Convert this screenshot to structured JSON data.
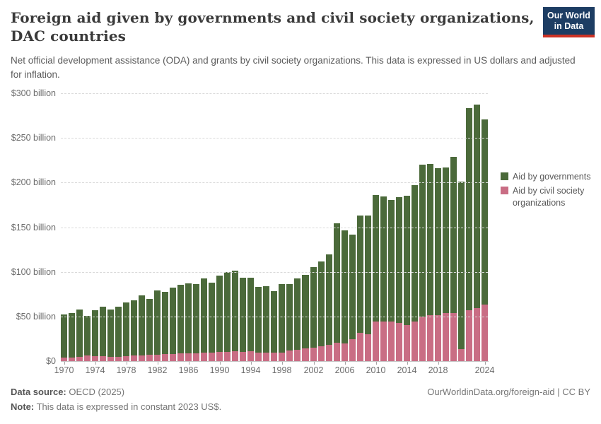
{
  "header": {
    "title": "Foreign aid given by governments and civil society organizations, DAC countries",
    "subtitle": "Net official development assistance (ODA) and grants by civil society organizations. This data is expressed in US dollars and adjusted for inflation.",
    "logo": {
      "line1": "Our World",
      "line2": "in Data"
    }
  },
  "colors": {
    "governments": "#4b6a3a",
    "civil_society": "#c96d84",
    "logo_bg": "#1d3d63",
    "logo_stripe": "#cc3225"
  },
  "chart_data": {
    "type": "bar",
    "stacked": true,
    "title": "Foreign aid given by governments and civil society organizations, DAC countries",
    "unit": "US dollars, constant 2023 US$ (billions)",
    "xlabel": "",
    "ylabel": "",
    "ylim": [
      0,
      300
    ],
    "grid": "horizontal dashed",
    "legend_position": "top-right",
    "x": [
      1970,
      1971,
      1972,
      1973,
      1974,
      1975,
      1976,
      1977,
      1978,
      1979,
      1980,
      1981,
      1982,
      1983,
      1984,
      1985,
      1986,
      1987,
      1988,
      1989,
      1990,
      1991,
      1992,
      1993,
      1994,
      1995,
      1996,
      1997,
      1998,
      1999,
      2000,
      2001,
      2002,
      2003,
      2004,
      2005,
      2006,
      2007,
      2008,
      2009,
      2010,
      2011,
      2012,
      2013,
      2014,
      2015,
      2016,
      2017,
      2018,
      2019,
      2020,
      2021,
      2022,
      2023,
      2024
    ],
    "series": [
      {
        "name": "Aid by governments",
        "color": "#4b6a3a",
        "values": [
          48,
          49.5,
          53.5,
          45,
          51.5,
          55.5,
          53,
          56,
          60.5,
          62,
          67.5,
          63,
          71.7,
          69.9,
          73.9,
          76.9,
          78.5,
          77.4,
          83.3,
          78.6,
          85.6,
          89,
          90,
          83.3,
          83,
          73.6,
          74.4,
          68.6,
          76.5,
          75.1,
          79.8,
          82.4,
          90,
          95,
          101.2,
          133.9,
          126.1,
          116.9,
          131.4,
          133.2,
          142.1,
          140.4,
          136.3,
          141.6,
          144.5,
          152.5,
          170.3,
          168.8,
          164.9,
          163,
          174.7,
          187.6,
          226.4,
          227.5,
          207.4
        ]
      },
      {
        "name": "Aid by civil society organizations",
        "color": "#c96d84",
        "values": [
          4,
          4,
          4.5,
          6,
          5.5,
          5.5,
          5,
          5,
          5.5,
          6,
          6.5,
          7,
          7.3,
          7.6,
          8.1,
          8.4,
          8.9,
          8.6,
          9.4,
          9.4,
          10.2,
          10.4,
          11,
          10.4,
          10.7,
          9.7,
          9.9,
          9.7,
          9.4,
          11.5,
          12.8,
          14.1,
          15.4,
          16.7,
          18,
          20.7,
          20.1,
          24.6,
          31.6,
          29.8,
          44.2,
          44,
          44.2,
          42.4,
          40.5,
          44.5,
          49.7,
          51.8,
          51.1,
          54,
          53.8,
          13.1,
          57.1,
          59.5,
          63.1
        ]
      },
      {
        "name": "_total_stacked",
        "color": "",
        "values": [
          52,
          53.5,
          58,
          51,
          57,
          61,
          58,
          61,
          66,
          68,
          74,
          70,
          79,
          77.5,
          82,
          85.3,
          87.4,
          86,
          92.7,
          88,
          95.8,
          99.4,
          101,
          93.7,
          93.7,
          83.3,
          84.3,
          78.3,
          85.9,
          86.6,
          92.6,
          96.5,
          105.4,
          111.7,
          119.2,
          154.6,
          146.2,
          141.5,
          163,
          163,
          186.3,
          184.4,
          180.5,
          184,
          185,
          197,
          220,
          220.6,
          216,
          217,
          228.5,
          200.7,
          283.5,
          287,
          270.5
        ]
      }
    ],
    "yticks": [
      {
        "value": 0,
        "label": "$0"
      },
      {
        "value": 50,
        "label": "$50 billion"
      },
      {
        "value": 100,
        "label": "$100 billion"
      },
      {
        "value": 150,
        "label": "$150 billion"
      },
      {
        "value": 200,
        "label": "$200 billion"
      },
      {
        "value": 250,
        "label": "$250 billion"
      },
      {
        "value": 300,
        "label": "$300 billion"
      }
    ],
    "xtick_years": [
      1970,
      1974,
      1978,
      1982,
      1986,
      1990,
      1994,
      1998,
      2002,
      2006,
      2010,
      2014,
      2018,
      2024
    ]
  },
  "legend": {
    "items": [
      {
        "label": "Aid by governments",
        "color": "#4b6a3a"
      },
      {
        "label": "Aid by civil society organizations",
        "color": "#c96d84"
      }
    ]
  },
  "footer": {
    "source_label": "Data source:",
    "source_value": " OECD (2025)",
    "note_label": "Note:",
    "note_value": " This data is expressed in constant 2023 US$.",
    "link": "OurWorldinData.org/foreign-aid | CC BY"
  }
}
